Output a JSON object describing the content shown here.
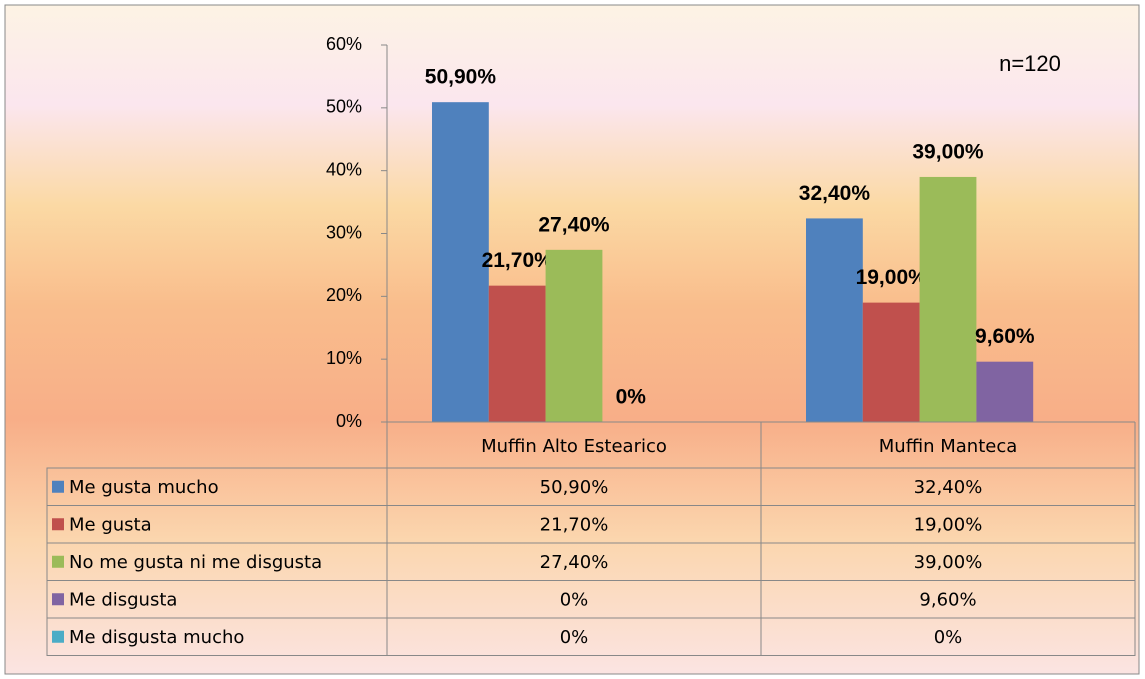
{
  "chart_data": {
    "type": "bar",
    "annotation": "n=120",
    "categories": [
      "Muffin Alto Estearico",
      "Muffin Manteca"
    ],
    "series": [
      {
        "name": "Me gusta mucho",
        "color": "#4f81bd",
        "values": [
          50.9,
          32.4
        ],
        "value_labels": [
          "50,90%",
          "32,40%"
        ]
      },
      {
        "name": "Me gusta",
        "color": "#c0504d",
        "values": [
          21.7,
          19.0
        ],
        "value_labels": [
          "21,70%",
          "19,00%"
        ]
      },
      {
        "name": "No me gusta ni me disgusta",
        "color": "#9bbb59",
        "values": [
          27.4,
          39.0
        ],
        "value_labels": [
          "27,40%",
          "39,00%"
        ]
      },
      {
        "name": "Me disgusta",
        "color": "#8064a2",
        "values": [
          0,
          9.6
        ],
        "value_labels": [
          "0%",
          "9,60%"
        ]
      },
      {
        "name": "Me disgusta mucho",
        "color": "#4bacc6",
        "values": [
          0,
          0
        ],
        "value_labels": [
          "0%",
          "0%"
        ],
        "data_labels": false
      }
    ],
    "ylim": [
      0,
      60
    ],
    "yticks": [
      {
        "value": 0,
        "label": "0%"
      },
      {
        "value": 10,
        "label": "10%"
      },
      {
        "value": 20,
        "label": "20%"
      },
      {
        "value": 30,
        "label": "30%"
      },
      {
        "value": 40,
        "label": "40%"
      },
      {
        "value": 50,
        "label": "50%"
      },
      {
        "value": 60,
        "label": "60%"
      }
    ],
    "data_table": true
  }
}
